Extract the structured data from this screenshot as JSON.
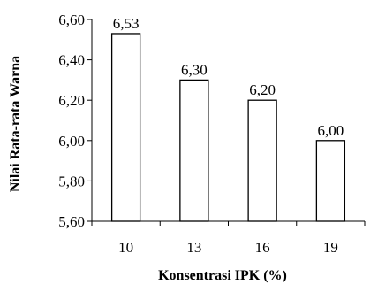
{
  "chart_data": {
    "type": "bar",
    "categories": [
      "10",
      "13",
      "16",
      "19"
    ],
    "values": [
      6.53,
      6.3,
      6.2,
      6.0
    ],
    "value_labels": [
      "6,53",
      "6,30",
      "6,20",
      "6,00"
    ],
    "xlabel": "Konsentrasi IPK (%)",
    "ylabel": "Nilai Rata-rata Warna",
    "ylim": [
      5.6,
      6.6
    ],
    "yticks": [
      5.6,
      5.8,
      6.0,
      6.2,
      6.4,
      6.6
    ],
    "ytick_labels": [
      "5,60",
      "5,80",
      "6,00",
      "6,20",
      "6,40",
      "6,60"
    ],
    "grid": false,
    "legend": "none",
    "colors": {
      "bar_fill": "#ffffff",
      "bar_stroke": "#000000",
      "axis": "#000000",
      "text": "#000000"
    }
  }
}
